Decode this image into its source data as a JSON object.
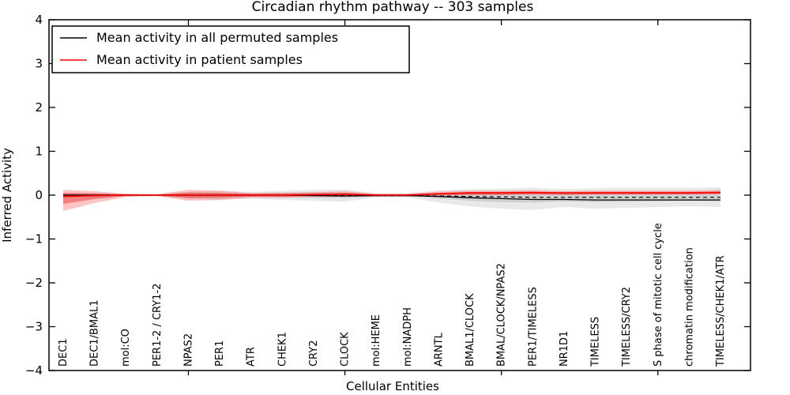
{
  "figure": {
    "title": "Circadian rhythm pathway -- 303 samples",
    "xlabel": "Cellular Entities",
    "ylabel": "Inferred Activity"
  },
  "legend": {
    "position": "upper left",
    "items": [
      {
        "label": "Mean activity in all permuted samples",
        "color": "#000000",
        "style": "solid"
      },
      {
        "label": "Mean activity in patient samples",
        "color": "#ff0000",
        "style": "solid"
      }
    ]
  },
  "axes": {
    "ylim": [
      -4,
      4
    ],
    "ytick_labels": [
      "4",
      "3",
      "2",
      "1",
      "0",
      "−1",
      "−2",
      "−3",
      "−4"
    ],
    "ytick_values": [
      4,
      3,
      2,
      1,
      0,
      -1,
      -2,
      -3,
      -4
    ],
    "xtick_indices": [
      4,
      9,
      14,
      19
    ],
    "grid": false,
    "frame_color": "#000000"
  },
  "chart_data": {
    "type": "line",
    "title": "Circadian rhythm pathway -- 303 samples",
    "xlabel": "Cellular Entities",
    "ylabel": "Inferred Activity",
    "ylim": [
      -4,
      4
    ],
    "legend_position": "upper left",
    "grid": false,
    "categories": [
      "DEC1",
      "DEC1/BMAL1",
      "mol:CO",
      "PER1-2 / CRY1-2",
      "NPAS2",
      "PER1",
      "ATR",
      "CHEK1",
      "CRY2",
      "CLOCK",
      "mol:HEME",
      "mol:NADPH",
      "ARNTL",
      "BMAL1/CLOCK",
      "BMAL/CLOCK/NPAS2",
      "PER1/TIMELESS",
      "NR1D1",
      "TIMELESS",
      "TIMELESS/CRY2",
      "S phase of mitotic cell cycle",
      "chromatin modification",
      "TIMELESS/CHEK1/ATR"
    ],
    "series": [
      {
        "name": "Mean activity in all permuted samples",
        "color": "#000000",
        "style": "solid",
        "width": 1.3,
        "values": [
          0,
          0,
          0,
          0,
          0,
          0,
          0,
          0,
          -0.01,
          -0.02,
          -0.01,
          -0.01,
          -0.03,
          -0.06,
          -0.08,
          -0.1,
          -0.1,
          -0.11,
          -0.11,
          -0.11,
          -0.11,
          -0.11
        ]
      },
      {
        "name": "baseline (dashed)",
        "color": "#000000",
        "style": "dashed",
        "width": 1.2,
        "values": [
          0,
          0,
          0,
          0,
          0,
          0,
          0,
          0,
          0,
          -0.01,
          -0.01,
          -0.01,
          -0.02,
          -0.03,
          -0.04,
          -0.05,
          -0.05,
          -0.05,
          -0.05,
          -0.05,
          -0.05,
          -0.05
        ]
      },
      {
        "name": "Mean activity in patient samples",
        "color": "#ff0000",
        "style": "solid",
        "width": 1.6,
        "values": [
          -0.03,
          -0.01,
          0,
          0,
          0,
          0,
          0,
          0,
          0.01,
          0.02,
          0,
          0,
          0.03,
          0.05,
          0.05,
          0.06,
          0.05,
          0.05,
          0.05,
          0.05,
          0.05,
          0.06
        ]
      }
    ],
    "bands": [
      {
        "name": "permuted-outer-band",
        "color": "rgba(120,120,120,0.16)",
        "hi": [
          0.05,
          0.05,
          0.03,
          0.02,
          0.08,
          0.1,
          0.07,
          0.1,
          0.12,
          0.13,
          0.04,
          0.04,
          0.11,
          0.14,
          0.15,
          0.17,
          0.14,
          0.16,
          0.17,
          0.17,
          0.17,
          0.18
        ],
        "lo": [
          -0.05,
          -0.05,
          -0.03,
          -0.02,
          -0.08,
          -0.11,
          -0.08,
          -0.11,
          -0.13,
          -0.15,
          -0.05,
          -0.05,
          -0.17,
          -0.26,
          -0.31,
          -0.34,
          -0.27,
          -0.31,
          -0.29,
          -0.27,
          -0.26,
          -0.27
        ]
      },
      {
        "name": "permuted-inner-band",
        "color": "rgba(120,120,120,0.22)",
        "hi": [
          0.02,
          0.02,
          0.01,
          0.01,
          0.04,
          0.05,
          0.03,
          0.05,
          0.06,
          0.06,
          0.02,
          0.02,
          0.05,
          0.07,
          0.08,
          0.08,
          0.07,
          0.08,
          0.08,
          0.08,
          0.08,
          0.09
        ],
        "lo": [
          -0.02,
          -0.02,
          -0.01,
          -0.01,
          -0.04,
          -0.05,
          -0.04,
          -0.05,
          -0.06,
          -0.07,
          -0.02,
          -0.02,
          -0.08,
          -0.13,
          -0.16,
          -0.17,
          -0.14,
          -0.16,
          -0.15,
          -0.14,
          -0.13,
          -0.14
        ]
      },
      {
        "name": "patient-outer-band",
        "color": "rgba(255,60,60,0.30)",
        "hi": [
          0.12,
          0.09,
          0.03,
          0.02,
          0.12,
          0.1,
          0.05,
          0.06,
          0.07,
          0.09,
          0.03,
          0.03,
          0.08,
          0.1,
          0.1,
          0.11,
          0.09,
          0.1,
          0.1,
          0.1,
          0.1,
          0.12
        ],
        "lo": [
          -0.36,
          -0.18,
          -0.04,
          -0.02,
          -0.13,
          -0.11,
          -0.06,
          -0.06,
          -0.04,
          -0.03,
          -0.03,
          -0.03,
          -0.01,
          0,
          0,
          0.01,
          0,
          0.01,
          0.01,
          0.01,
          0.01,
          0.02
        ]
      },
      {
        "name": "patient-inner-band",
        "color": "rgba(230,30,30,0.42)",
        "hi": [
          0.05,
          0.04,
          0.02,
          0.01,
          0.06,
          0.05,
          0.03,
          0.03,
          0.04,
          0.05,
          0.02,
          0.02,
          0.05,
          0.07,
          0.07,
          0.08,
          0.06,
          0.07,
          0.07,
          0.07,
          0.07,
          0.08
        ],
        "lo": [
          -0.2,
          -0.09,
          -0.02,
          -0.01,
          -0.07,
          -0.06,
          -0.03,
          -0.03,
          -0.02,
          -0.01,
          -0.01,
          -0.01,
          0,
          0.01,
          0.01,
          0.02,
          0.01,
          0.02,
          0.02,
          0.02,
          0.02,
          0.03
        ]
      }
    ]
  }
}
